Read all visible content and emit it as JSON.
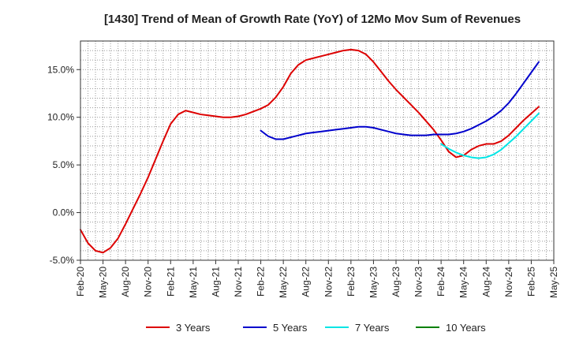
{
  "chart_data": {
    "type": "line",
    "title": "[1430]  Trend of Mean of Growth Rate (YoY) of 12Mo Mov Sum of Revenues",
    "xlabel": "",
    "ylabel": "",
    "ylim": [
      -5,
      18
    ],
    "yticks": [
      -5,
      0,
      5,
      10,
      15
    ],
    "ytick_labels": [
      "-5.0%",
      "0.0%",
      "5.0%",
      "10.0%",
      "15.0%"
    ],
    "xtick_labels": [
      "Feb-20",
      "May-20",
      "Aug-20",
      "Nov-20",
      "Feb-21",
      "May-21",
      "Aug-21",
      "Nov-21",
      "Feb-22",
      "May-22",
      "Aug-22",
      "Nov-22",
      "Feb-23",
      "May-23",
      "Aug-23",
      "Nov-23",
      "Feb-24",
      "May-24",
      "Aug-24",
      "Nov-24",
      "Feb-25",
      "May-25"
    ],
    "x_month_range": [
      0,
      63
    ],
    "grid": true,
    "legend_position": "bottom",
    "series": [
      {
        "name": "3 Years",
        "color": "#dd0000",
        "start_month": 0,
        "values": [
          -1.8,
          -3.2,
          -4.0,
          -4.2,
          -3.7,
          -2.7,
          -1.2,
          0.4,
          2.0,
          3.7,
          5.6,
          7.5,
          9.3,
          10.3,
          10.7,
          10.5,
          10.3,
          10.2,
          10.1,
          10.0,
          10.0,
          10.1,
          10.3,
          10.6,
          10.9,
          11.3,
          12.1,
          13.2,
          14.6,
          15.5,
          16.0,
          16.2,
          16.4,
          16.6,
          16.8,
          17.0,
          17.1,
          17.0,
          16.6,
          15.8,
          14.8,
          13.8,
          12.9,
          12.1,
          11.3,
          10.5,
          9.6,
          8.7,
          7.6,
          6.4,
          5.8,
          6.0,
          6.6,
          7.0,
          7.2,
          7.2,
          7.5,
          8.1,
          8.9,
          9.7,
          10.4,
          11.1
        ]
      },
      {
        "name": "5 Years",
        "color": "#0000cc",
        "start_month": 24,
        "values": [
          8.6,
          8.0,
          7.7,
          7.7,
          7.9,
          8.1,
          8.3,
          8.4,
          8.5,
          8.6,
          8.7,
          8.8,
          8.9,
          9.0,
          9.0,
          8.9,
          8.7,
          8.5,
          8.3,
          8.2,
          8.1,
          8.1,
          8.1,
          8.2,
          8.2,
          8.2,
          8.3,
          8.5,
          8.8,
          9.2,
          9.6,
          10.1,
          10.7,
          11.5,
          12.5,
          13.6,
          14.7,
          15.8
        ]
      },
      {
        "name": "7 Years",
        "color": "#00e5e5",
        "start_month": 48,
        "values": [
          7.2,
          6.7,
          6.3,
          6.0,
          5.8,
          5.7,
          5.8,
          6.1,
          6.6,
          7.3,
          8.0,
          8.8,
          9.6,
          10.4
        ]
      },
      {
        "name": "10 Years",
        "color": "#008000",
        "start_month": 64,
        "values": []
      }
    ]
  }
}
